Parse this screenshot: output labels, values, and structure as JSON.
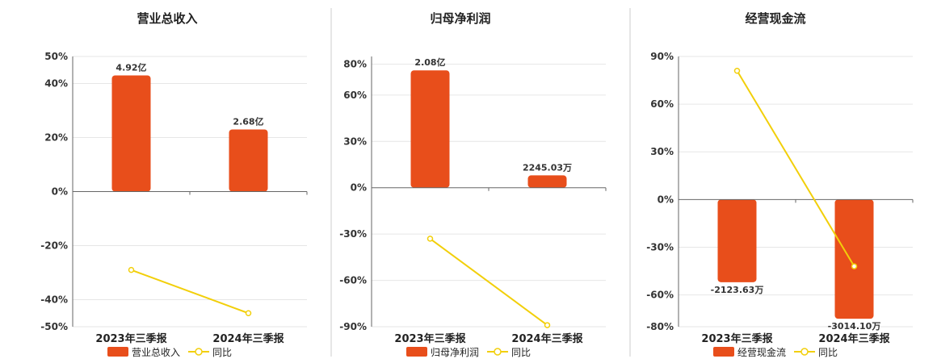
{
  "chart_data": [
    {
      "type": "bar",
      "title": "营业总收入",
      "categories": [
        "2023年三季报",
        "2024年三季报"
      ],
      "ylim": [
        -50,
        50
      ],
      "y_ticks": [
        50,
        40,
        20,
        0,
        -20,
        -40,
        -50
      ],
      "y_tick_labels": [
        "50%",
        "40%",
        "20%",
        "0%",
        "-20%",
        "-40%",
        "-50%"
      ],
      "series": [
        {
          "name": "营业总收入",
          "kind": "bar",
          "values": [
            43,
            23
          ],
          "labels": [
            "4.92亿",
            "2.68亿"
          ]
        },
        {
          "name": "同比",
          "kind": "line",
          "values": [
            -29,
            -45
          ]
        }
      ],
      "grid": true,
      "legend": "bottom"
    },
    {
      "type": "bar",
      "title": "归母净利润",
      "categories": [
        "2023年三季报",
        "2024年三季报"
      ],
      "ylim": [
        -90,
        85
      ],
      "y_ticks": [
        80,
        60,
        30,
        0,
        -30,
        -60,
        -90
      ],
      "y_tick_labels": [
        "80%",
        "60%",
        "30%",
        "0%",
        "-30%",
        "-60%",
        "-90%"
      ],
      "series": [
        {
          "name": "归母净利润",
          "kind": "bar",
          "values": [
            76,
            8
          ],
          "labels": [
            "2.08亿",
            "2245.03万"
          ]
        },
        {
          "name": "同比",
          "kind": "line",
          "values": [
            -33,
            -89
          ]
        }
      ],
      "grid": true,
      "legend": "bottom"
    },
    {
      "type": "bar",
      "title": "经营现金流",
      "categories": [
        "2023年三季报",
        "2024年三季报"
      ],
      "ylim": [
        -80,
        90
      ],
      "y_ticks": [
        90,
        60,
        30,
        0,
        -30,
        -60,
        -80
      ],
      "y_tick_labels": [
        "90%",
        "60%",
        "30%",
        "0%",
        "-30%",
        "-60%",
        "-80%"
      ],
      "series": [
        {
          "name": "经营现金流",
          "kind": "bar",
          "values": [
            -52,
            -75
          ],
          "labels": [
            "-2123.63万",
            "-3014.10万"
          ]
        },
        {
          "name": "同比",
          "kind": "line",
          "values": [
            81,
            -42
          ]
        }
      ],
      "grid": true,
      "legend": "bottom"
    }
  ],
  "colors": {
    "bar": "#e84e1b",
    "line": "#f2cf0a",
    "grid": "#e6e6e6",
    "axis": "#666666",
    "divider": "#cccccc"
  }
}
